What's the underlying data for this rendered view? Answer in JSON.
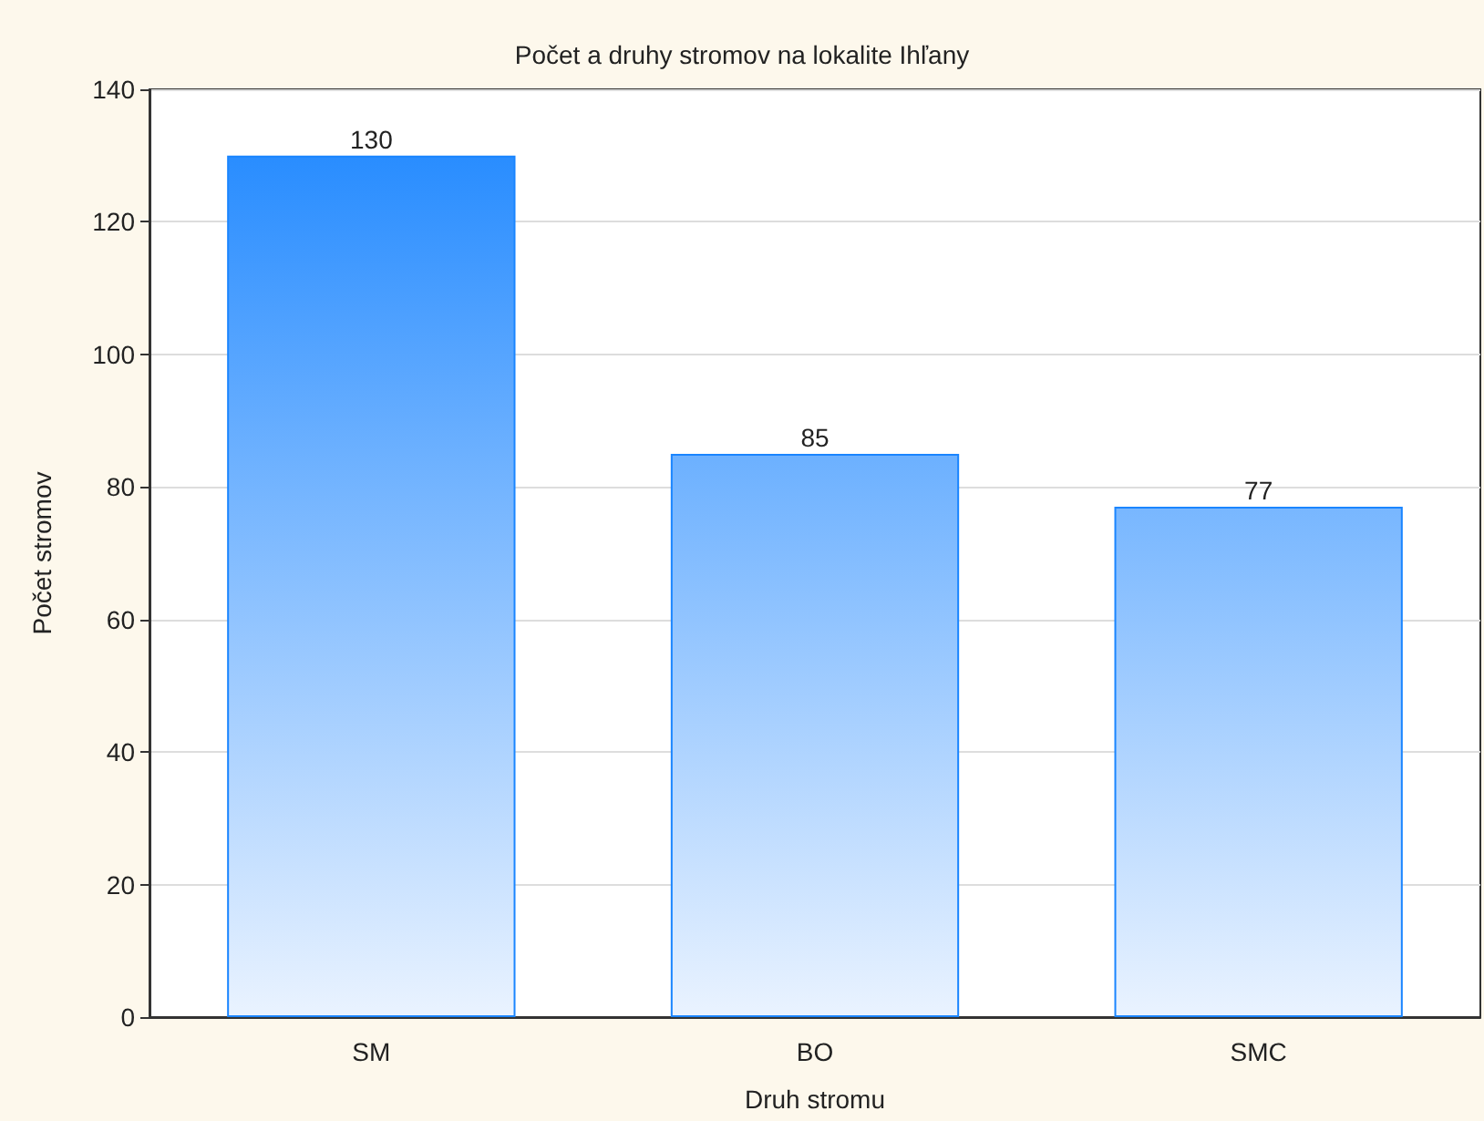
{
  "chart_data": {
    "type": "bar",
    "title": "Počet a druhy stromov na lokalite Ihľany",
    "xlabel": "Druh stromu",
    "ylabel": "Počet stromov",
    "categories": [
      "SM",
      "BO",
      "SMC"
    ],
    "series": [
      {
        "color": "#1a85ff",
        "values": [
          130,
          85,
          77
        ]
      }
    ],
    "ylim": [
      0,
      140
    ],
    "yticks": [
      0,
      20,
      40,
      60,
      80,
      100,
      120,
      140
    ],
    "grid": "y",
    "data_labels": true
  }
}
